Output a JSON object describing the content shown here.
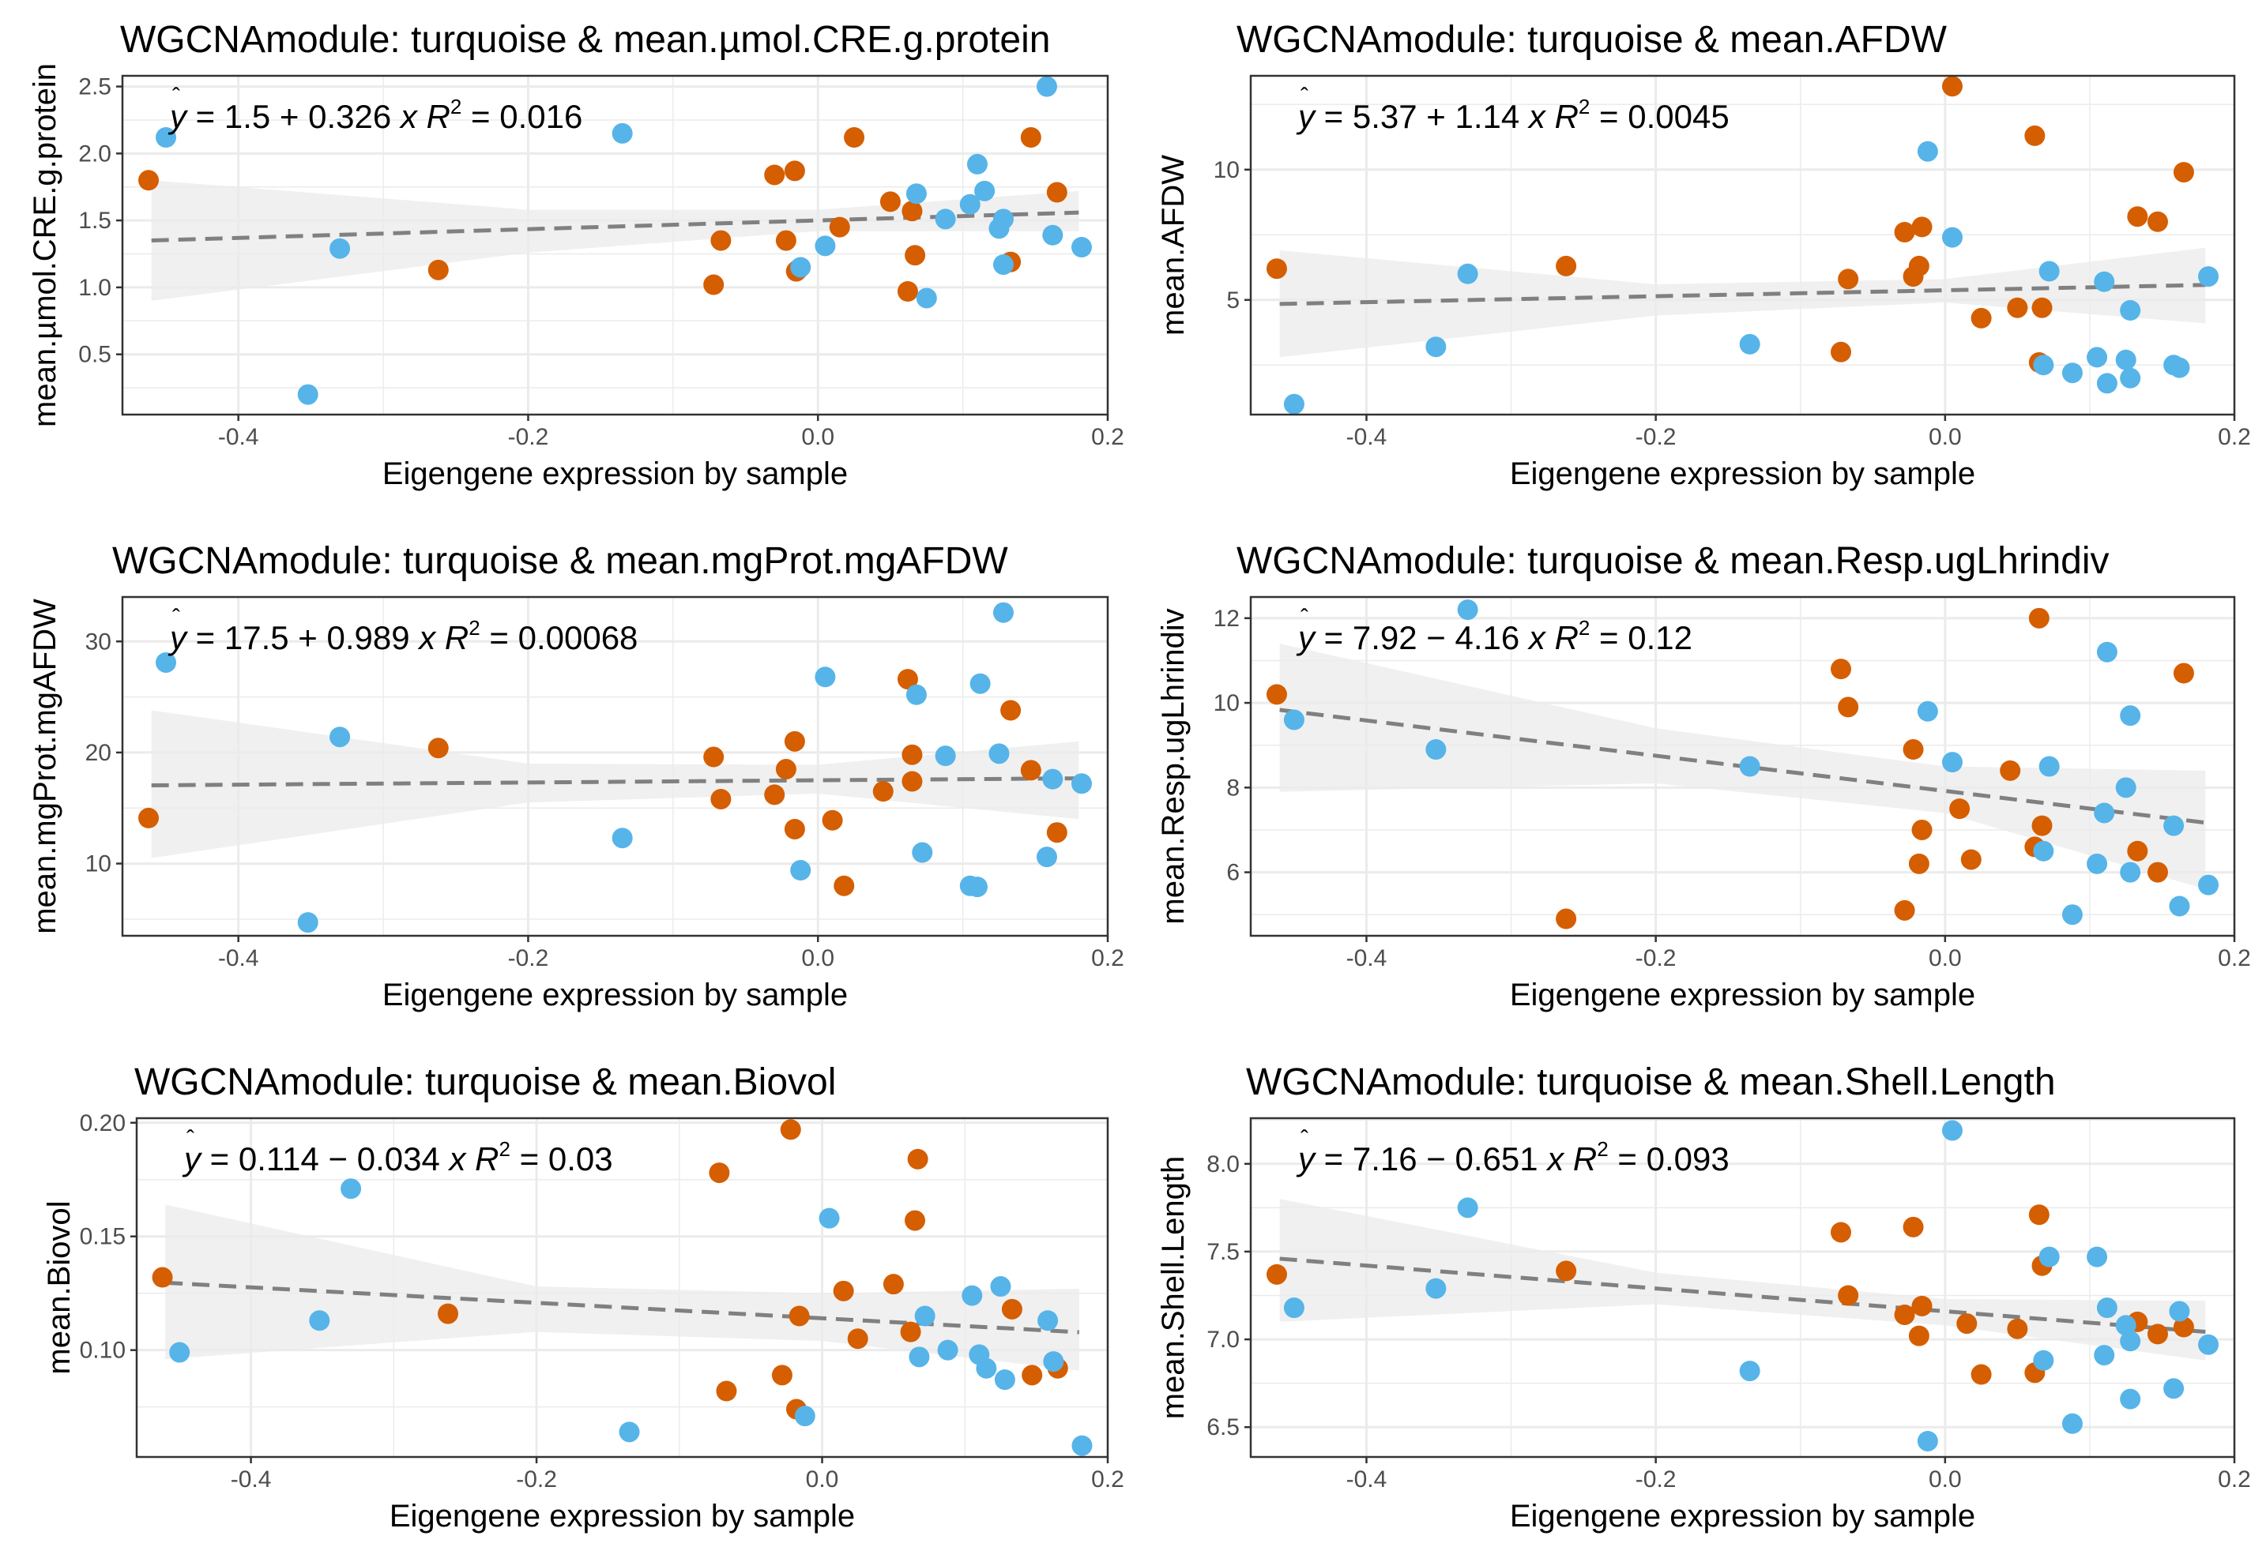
{
  "colors": {
    "orange": "#D55E00",
    "blue": "#56B4E9",
    "trend": "#808080",
    "band": "#EBEBEB",
    "grid": "#EBEBEB",
    "frame": "#333333",
    "text": "#000000",
    "ticktext": "#4D4D4D"
  },
  "chart_data": [
    {
      "type": "scatter",
      "title": "WGCNAmodule: turquoise & mean.µmol.CRE.g.protein",
      "xlabel": "Eigengene expression by sample",
      "ylabel": "mean.µmol.CRE.g.protein",
      "xlim": [
        -0.48,
        0.2
      ],
      "ylim": [
        0.05,
        2.58
      ],
      "xticks": [
        -0.4,
        -0.2,
        0.0,
        0.2
      ],
      "xticklabels": [
        "-0.4",
        "-0.2",
        "0.0",
        "0.2"
      ],
      "yticks": [
        0.5,
        1.0,
        1.5,
        2.0,
        2.5
      ],
      "yticklabels": [
        "0.5",
        "1.0",
        "1.5",
        "2.0",
        "2.5"
      ],
      "equation": {
        "intercept": "1.5",
        "sign": "+",
        "slope": "0.326",
        "r2": "0.016"
      },
      "fit": {
        "intercept": 1.5,
        "slope": 0.326,
        "x_range": [
          -0.46,
          0.18
        ],
        "band": [
          [
            -0.46,
            0.9,
            1.8
          ],
          [
            -0.2,
            1.26,
            1.58
          ],
          [
            0.0,
            1.42,
            1.58
          ],
          [
            0.18,
            1.42,
            1.72
          ]
        ]
      },
      "series": [
        {
          "name": "orange",
          "x": [
            -0.462,
            -0.262,
            -0.072,
            -0.067,
            -0.03,
            -0.022,
            -0.016,
            -0.014,
            -0.015,
            0.015,
            0.025,
            0.05,
            0.062,
            0.065,
            0.067,
            0.133,
            0.147,
            0.165
          ],
          "y": [
            1.8,
            1.13,
            1.02,
            1.35,
            1.84,
            1.35,
            1.87,
            1.13,
            1.12,
            1.45,
            2.12,
            1.64,
            0.97,
            1.57,
            1.24,
            1.19,
            2.12,
            1.71
          ]
        },
        {
          "name": "blue",
          "x": [
            -0.45,
            -0.352,
            -0.33,
            -0.135,
            -0.012,
            0.005,
            0.068,
            0.075,
            0.088,
            0.105,
            0.11,
            0.115,
            0.125,
            0.128,
            0.128,
            0.158,
            0.162,
            0.182
          ],
          "y": [
            2.12,
            0.2,
            1.29,
            2.15,
            1.15,
            1.31,
            1.7,
            0.92,
            1.51,
            1.62,
            1.92,
            1.72,
            1.44,
            1.17,
            1.51,
            2.5,
            1.39,
            1.3
          ]
        }
      ]
    },
    {
      "type": "scatter",
      "title": "WGCNAmodule: turquoise & mean.AFDW",
      "xlabel": "Eigengene expression by sample",
      "ylabel": "mean.AFDW",
      "xlim": [
        -0.48,
        0.2
      ],
      "ylim": [
        0.6,
        13.6
      ],
      "xticks": [
        -0.4,
        -0.2,
        0.0,
        0.2
      ],
      "xticklabels": [
        "-0.4",
        "-0.2",
        "0.0",
        "0.2"
      ],
      "yticks": [
        5,
        10
      ],
      "yticklabels": [
        "5",
        "10"
      ],
      "equation": {
        "intercept": "5.37",
        "sign": "+",
        "slope": "1.14",
        "r2": "0.0045"
      },
      "fit": {
        "intercept": 5.37,
        "slope": 1.14,
        "x_range": [
          -0.46,
          0.18
        ],
        "band": [
          [
            -0.46,
            2.8,
            6.9
          ],
          [
            -0.2,
            4.4,
            5.6
          ],
          [
            0.0,
            4.9,
            5.8
          ],
          [
            0.18,
            4.1,
            7.0
          ]
        ]
      },
      "series": [
        {
          "name": "orange",
          "x": [
            -0.462,
            -0.262,
            -0.072,
            -0.067,
            -0.028,
            -0.022,
            -0.018,
            -0.016,
            0.005,
            0.025,
            0.05,
            0.062,
            0.065,
            0.067,
            0.133,
            0.147,
            0.165
          ],
          "y": [
            6.2,
            6.3,
            3.0,
            5.8,
            7.6,
            5.9,
            6.3,
            7.8,
            13.2,
            4.3,
            4.7,
            11.3,
            2.6,
            4.7,
            8.2,
            8.0,
            9.9
          ]
        },
        {
          "name": "blue",
          "x": [
            -0.45,
            -0.352,
            -0.33,
            -0.135,
            -0.012,
            0.005,
            0.068,
            0.072,
            0.088,
            0.105,
            0.11,
            0.112,
            0.125,
            0.128,
            0.128,
            0.158,
            0.162,
            0.182
          ],
          "y": [
            1.0,
            3.2,
            6.0,
            3.3,
            10.7,
            7.4,
            2.5,
            6.1,
            2.2,
            2.8,
            5.7,
            1.8,
            2.7,
            4.6,
            2.0,
            2.5,
            2.4,
            5.9
          ]
        }
      ]
    },
    {
      "type": "scatter",
      "title": "WGCNAmodule: turquoise & mean.mgProt.mgAFDW",
      "xlabel": "Eigengene expression by sample",
      "ylabel": "mean.mgProt.mgAFDW",
      "xlim": [
        -0.48,
        0.2
      ],
      "ylim": [
        3.5,
        34.0
      ],
      "xticks": [
        -0.4,
        -0.2,
        0.0,
        0.2
      ],
      "xticklabels": [
        "-0.4",
        "-0.2",
        "0.0",
        "0.2"
      ],
      "yticks": [
        10,
        20,
        30
      ],
      "yticklabels": [
        "10",
        "20",
        "30"
      ],
      "equation": {
        "intercept": "17.5",
        "sign": "+",
        "slope": "0.989",
        "r2": "0.00068"
      },
      "fit": {
        "intercept": 17.5,
        "slope": 0.989,
        "x_range": [
          -0.46,
          0.18
        ],
        "band": [
          [
            -0.46,
            10.5,
            23.8
          ],
          [
            -0.2,
            15.5,
            19.0
          ],
          [
            0.0,
            16.3,
            18.9
          ],
          [
            0.18,
            14.0,
            21.0
          ]
        ]
      },
      "series": [
        {
          "name": "orange",
          "x": [
            -0.462,
            -0.262,
            -0.072,
            -0.067,
            -0.03,
            -0.022,
            -0.016,
            -0.016,
            0.01,
            0.018,
            0.045,
            0.062,
            0.065,
            0.065,
            0.133,
            0.147,
            0.165
          ],
          "y": [
            14.1,
            20.4,
            19.6,
            15.8,
            16.2,
            18.5,
            21.0,
            13.1,
            13.9,
            8.0,
            16.5,
            26.6,
            17.4,
            19.8,
            23.8,
            18.4,
            12.8
          ]
        },
        {
          "name": "blue",
          "x": [
            -0.45,
            -0.352,
            -0.33,
            -0.135,
            -0.012,
            0.005,
            0.068,
            0.072,
            0.088,
            0.105,
            0.11,
            0.112,
            0.125,
            0.128,
            0.158,
            0.162,
            0.182
          ],
          "y": [
            28.1,
            4.7,
            21.4,
            12.3,
            9.4,
            26.8,
            25.2,
            11.0,
            19.7,
            8.0,
            7.9,
            26.2,
            19.9,
            32.6,
            10.6,
            17.6,
            17.2
          ]
        }
      ]
    },
    {
      "type": "scatter",
      "title": "WGCNAmodule: turquoise & mean.Resp.ugLhrindiv",
      "xlabel": "Eigengene expression by sample",
      "ylabel": "mean.Resp.ugLhrindiv",
      "xlim": [
        -0.48,
        0.2
      ],
      "ylim": [
        4.5,
        12.5
      ],
      "xticks": [
        -0.4,
        -0.2,
        0.0,
        0.2
      ],
      "xticklabels": [
        "-0.4",
        "-0.2",
        "0.0",
        "0.2"
      ],
      "yticks": [
        6,
        8,
        10,
        12
      ],
      "yticklabels": [
        "6",
        "8",
        "10",
        "12"
      ],
      "equation": {
        "intercept": "7.92",
        "sign": "-",
        "slope": "4.16",
        "r2": "0.12"
      },
      "fit": {
        "intercept": 7.92,
        "slope": -4.16,
        "x_range": [
          -0.46,
          0.18
        ],
        "band": [
          [
            -0.46,
            7.9,
            11.4
          ],
          [
            -0.2,
            8.1,
            9.4
          ],
          [
            0.0,
            7.4,
            8.5
          ],
          [
            0.18,
            5.6,
            8.4
          ]
        ]
      },
      "series": [
        {
          "name": "orange",
          "x": [
            -0.462,
            -0.262,
            -0.072,
            -0.067,
            -0.028,
            -0.022,
            -0.018,
            -0.016,
            0.01,
            0.018,
            0.045,
            0.062,
            0.065,
            0.067,
            0.133,
            0.147,
            0.165
          ],
          "y": [
            10.2,
            4.9,
            10.8,
            9.9,
            5.1,
            8.9,
            6.2,
            7.0,
            7.5,
            6.3,
            8.4,
            6.6,
            12.0,
            7.1,
            6.5,
            6.0,
            10.7
          ]
        },
        {
          "name": "blue",
          "x": [
            -0.45,
            -0.352,
            -0.33,
            -0.135,
            -0.012,
            0.005,
            0.068,
            0.072,
            0.088,
            0.105,
            0.11,
            0.112,
            0.125,
            0.128,
            0.128,
            0.158,
            0.162,
            0.182
          ],
          "y": [
            9.6,
            8.9,
            12.2,
            8.5,
            9.8,
            8.6,
            6.5,
            8.5,
            5.0,
            6.2,
            7.4,
            11.2,
            8.0,
            6.0,
            9.7,
            7.1,
            5.2,
            5.7
          ]
        }
      ]
    },
    {
      "type": "scatter",
      "title": "WGCNAmodule: turquoise & mean.Biovol",
      "xlabel": "Eigengene expression by sample",
      "ylabel": "mean.Biovol",
      "xlim": [
        -0.48,
        0.2
      ],
      "ylim": [
        0.053,
        0.202
      ],
      "xticks": [
        -0.4,
        -0.2,
        0.0,
        0.2
      ],
      "xticklabels": [
        "-0.4",
        "-0.2",
        "0.0",
        "0.2"
      ],
      "yticks": [
        0.1,
        0.15,
        0.2
      ],
      "yticklabels": [
        "0.10",
        "0.15",
        "0.20"
      ],
      "equation": {
        "intercept": "0.114",
        "sign": "-",
        "slope": "0.034",
        "r2": "0.03"
      },
      "fit": {
        "intercept": 0.114,
        "slope": -0.034,
        "x_range": [
          -0.46,
          0.18
        ],
        "band": [
          [
            -0.46,
            0.096,
            0.164
          ],
          [
            -0.2,
            0.108,
            0.128
          ],
          [
            0.0,
            0.104,
            0.125
          ],
          [
            0.18,
            0.091,
            0.127
          ]
        ]
      },
      "series": [
        {
          "name": "orange",
          "x": [
            -0.462,
            -0.262,
            -0.072,
            -0.067,
            -0.028,
            -0.022,
            -0.018,
            -0.016,
            0.015,
            0.025,
            0.05,
            0.062,
            0.065,
            0.067,
            0.133,
            0.147,
            0.165
          ],
          "y": [
            0.132,
            0.116,
            0.178,
            0.082,
            0.089,
            0.197,
            0.074,
            0.115,
            0.126,
            0.105,
            0.129,
            0.108,
            0.157,
            0.184,
            0.118,
            0.089,
            0.092
          ]
        },
        {
          "name": "blue",
          "x": [
            -0.45,
            -0.352,
            -0.33,
            -0.135,
            -0.012,
            0.005,
            0.068,
            0.072,
            0.088,
            0.105,
            0.11,
            0.115,
            0.125,
            0.128,
            0.158,
            0.162,
            0.182
          ],
          "y": [
            0.099,
            0.113,
            0.171,
            0.064,
            0.071,
            0.158,
            0.097,
            0.115,
            0.1,
            0.124,
            0.098,
            0.092,
            0.128,
            0.087,
            0.113,
            0.095,
            0.058
          ]
        }
      ]
    },
    {
      "type": "scatter",
      "title": "WGCNAmodule: turquoise & mean.Shell.Length",
      "xlabel": "Eigengene expression by sample",
      "ylabel": "mean.Shell.Length",
      "xlim": [
        -0.48,
        0.2
      ],
      "ylim": [
        6.33,
        8.26
      ],
      "xticks": [
        -0.4,
        -0.2,
        0.0,
        0.2
      ],
      "xticklabels": [
        "-0.4",
        "-0.2",
        "0.0",
        "0.2"
      ],
      "yticks": [
        6.5,
        7.0,
        7.5,
        8.0
      ],
      "yticklabels": [
        "6.5",
        "7.0",
        "7.5",
        "8.0"
      ],
      "equation": {
        "intercept": "7.16",
        "sign": "-",
        "slope": "0.651",
        "r2": "0.093"
      },
      "fit": {
        "intercept": 7.16,
        "slope": -0.651,
        "x_range": [
          -0.46,
          0.18
        ],
        "band": [
          [
            -0.46,
            7.1,
            7.8
          ],
          [
            -0.2,
            7.2,
            7.38
          ],
          [
            0.0,
            7.08,
            7.23
          ],
          [
            0.18,
            6.88,
            7.22
          ]
        ]
      },
      "series": [
        {
          "name": "orange",
          "x": [
            -0.462,
            -0.262,
            -0.072,
            -0.067,
            -0.028,
            -0.022,
            -0.018,
            -0.016,
            0.015,
            0.025,
            0.05,
            0.062,
            0.065,
            0.067,
            0.133,
            0.147,
            0.165
          ],
          "y": [
            7.37,
            7.39,
            7.61,
            7.25,
            7.14,
            7.64,
            7.02,
            7.19,
            7.09,
            6.8,
            7.06,
            6.81,
            7.71,
            7.42,
            7.1,
            7.03,
            7.07
          ]
        },
        {
          "name": "blue",
          "x": [
            -0.45,
            -0.352,
            -0.33,
            -0.135,
            -0.012,
            0.005,
            0.068,
            0.072,
            0.088,
            0.105,
            0.11,
            0.112,
            0.125,
            0.128,
            0.128,
            0.158,
            0.162,
            0.182
          ],
          "y": [
            7.18,
            7.29,
            7.75,
            6.82,
            6.42,
            8.19,
            6.88,
            7.47,
            6.52,
            7.47,
            6.91,
            7.18,
            7.08,
            6.99,
            6.66,
            6.72,
            7.16,
            6.97
          ]
        }
      ]
    }
  ]
}
